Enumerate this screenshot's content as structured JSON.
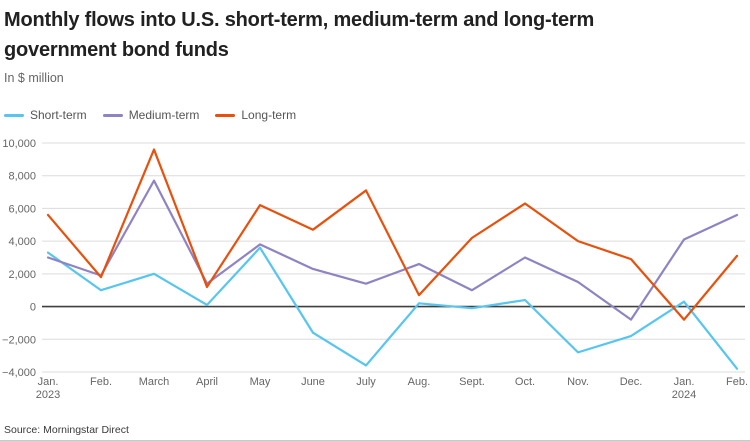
{
  "header": {
    "title": "Monthly flows into U.S. short-term, medium-term and long-term government bond funds",
    "subtitle": "In $ million"
  },
  "footer": {
    "source": "Source: Morningstar Direct"
  },
  "chart_data": {
    "type": "line",
    "title": "Monthly flows into U.S. short-term, medium-term and long-term government bond funds",
    "ylabel": "In $ million",
    "categories": [
      "Jan.",
      "Feb.",
      "March",
      "April",
      "May",
      "June",
      "July",
      "Aug.",
      "Sept.",
      "Oct.",
      "Nov.",
      "Dec.",
      "Jan.",
      "Feb."
    ],
    "category_sublabels": [
      "2023",
      "",
      "",
      "",
      "",
      "",
      "",
      "",
      "",
      "",
      "",
      "",
      "2024",
      ""
    ],
    "series": [
      {
        "name": "Short-term",
        "color": "#56C5F0",
        "values": [
          3300,
          1000,
          2000,
          100,
          3600,
          -1600,
          -3600,
          200,
          -100,
          400,
          -2800,
          -1800,
          300,
          -3800
        ]
      },
      {
        "name": "Medium-term",
        "color": "#8F83C4",
        "values": [
          3000,
          1900,
          7700,
          1400,
          3800,
          2300,
          1400,
          2600,
          1000,
          3000,
          1500,
          -800,
          4100,
          5600
        ]
      },
      {
        "name": "Long-term",
        "color": "#E8500C",
        "values": [
          5600,
          1800,
          9600,
          1200,
          6200,
          4700,
          7100,
          700,
          4200,
          6300,
          4000,
          2900,
          -800,
          3100
        ]
      }
    ],
    "ylim": [
      -4000,
      10000
    ],
    "yticks": [
      10000,
      8000,
      6000,
      4000,
      2000,
      0,
      -2000,
      -4000
    ],
    "ytick_labels": [
      "10,000",
      "8,000",
      "6,000",
      "4,000",
      "2,000",
      "0",
      "−2,000",
      "−4,000"
    ],
    "grid": true,
    "legend_position": "top-left",
    "zero_line_color": "#3f3f3f",
    "gridline_color": "#dcdcdc"
  }
}
